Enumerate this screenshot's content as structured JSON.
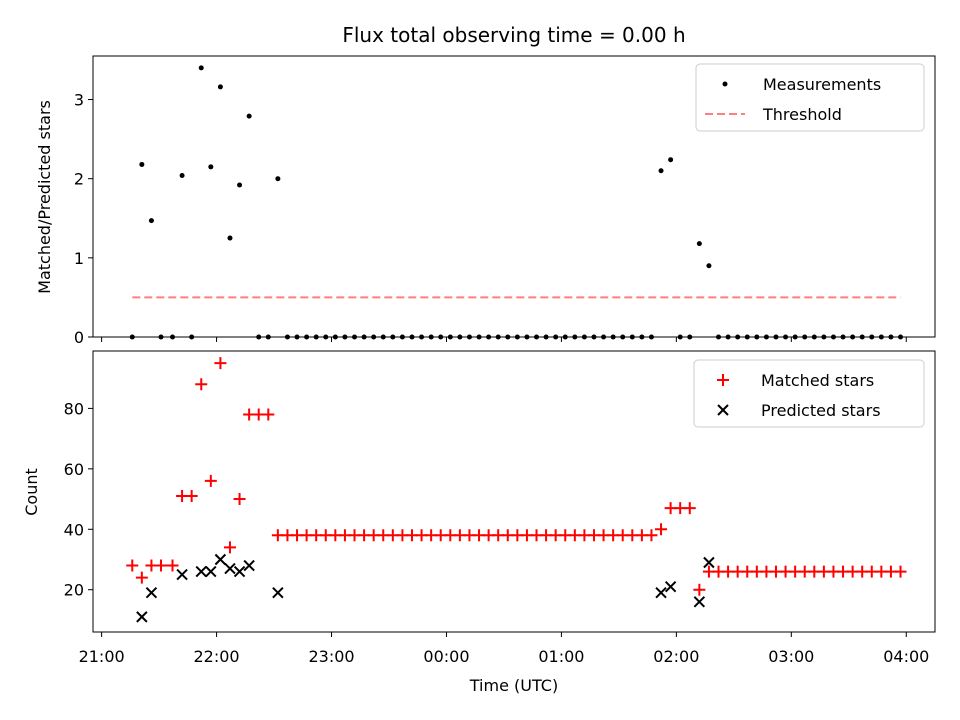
{
  "figure": {
    "title": "Flux total observing time = 0.00 h",
    "xlabel": "Time (UTC)"
  },
  "chart_data": [
    {
      "type": "scatter",
      "panel": "top",
      "ylabel": "Matched/Predicted stars",
      "xlim_hours": [
        -0.075,
        7.25
      ],
      "ylim": [
        0,
        3.55
      ],
      "yticks": [
        0,
        1,
        2,
        3
      ],
      "legend": "top-right",
      "legend_entries": [
        "Measurements",
        "Threshold"
      ],
      "threshold": 0.5,
      "threshold_color": "#ff7f7f",
      "series": [
        {
          "name": "Measurements",
          "color": "#000000",
          "x": [
            "21:16",
            "21:21",
            "21:26",
            "21:31",
            "21:37",
            "21:42",
            "21:47",
            "21:52",
            "21:57",
            "22:02",
            "22:07",
            "22:12",
            "22:17",
            "22:22",
            "22:27",
            "22:32",
            "22:37",
            "22:42",
            "22:47",
            "22:52",
            "22:57",
            "23:02",
            "23:07",
            "23:12",
            "23:17",
            "23:22",
            "23:27",
            "23:32",
            "23:37",
            "23:42",
            "23:47",
            "23:52",
            "23:57",
            "00:02",
            "00:07",
            "00:12",
            "00:17",
            "00:22",
            "00:27",
            "00:32",
            "00:37",
            "00:42",
            "00:47",
            "00:52",
            "00:57",
            "01:02",
            "01:07",
            "01:12",
            "01:17",
            "01:22",
            "01:27",
            "01:32",
            "01:37",
            "01:42",
            "01:47",
            "01:52",
            "01:57",
            "02:02",
            "02:07",
            "02:12",
            "02:17",
            "02:22",
            "02:27",
            "02:32",
            "02:37",
            "02:42",
            "02:47",
            "02:52",
            "02:57",
            "03:02",
            "03:07",
            "03:12",
            "03:17",
            "03:22",
            "03:27",
            "03:32",
            "03:37",
            "03:42",
            "03:47",
            "03:52",
            "03:57"
          ],
          "y": [
            0,
            2.18,
            1.47,
            0,
            0,
            2.04,
            0,
            3.4,
            2.15,
            3.16,
            1.25,
            1.92,
            2.79,
            0,
            0,
            2,
            0,
            0,
            0,
            0,
            0,
            0,
            0,
            0,
            0,
            0,
            0,
            0,
            0,
            0,
            0,
            0,
            0,
            0,
            0,
            0,
            0,
            0,
            0,
            0,
            0,
            0,
            0,
            0,
            0,
            0,
            0,
            0,
            0,
            0,
            0,
            0,
            0,
            0,
            0,
            2.1,
            2.24,
            0,
            0,
            1.18,
            0.9,
            0,
            0,
            0,
            0,
            0,
            0,
            0,
            0,
            0,
            0,
            0,
            0,
            0,
            0,
            0,
            0,
            0,
            0,
            0,
            0
          ]
        }
      ]
    },
    {
      "type": "scatter",
      "panel": "bottom",
      "ylabel": "Count",
      "xlim_hours": [
        -0.075,
        7.25
      ],
      "ylim": [
        6,
        99
      ],
      "yticks": [
        20,
        40,
        60,
        80
      ],
      "legend": "top-right",
      "legend_entries": [
        "Matched stars",
        "Predicted stars"
      ],
      "xticks": [
        "21:00",
        "22:00",
        "23:00",
        "00:00",
        "01:00",
        "02:00",
        "03:00",
        "04:00"
      ],
      "series": [
        {
          "name": "Matched stars",
          "color": "#ff0000",
          "x": [
            "21:16",
            "21:21",
            "21:26",
            "21:31",
            "21:37",
            "21:42",
            "21:47",
            "21:52",
            "21:57",
            "22:02",
            "22:07",
            "22:12",
            "22:17",
            "22:22",
            "22:27",
            "22:32",
            "22:37",
            "22:42",
            "22:47",
            "22:52",
            "22:57",
            "23:02",
            "23:07",
            "23:12",
            "23:17",
            "23:22",
            "23:27",
            "23:32",
            "23:37",
            "23:42",
            "23:47",
            "23:52",
            "23:57",
            "00:02",
            "00:07",
            "00:12",
            "00:17",
            "00:22",
            "00:27",
            "00:32",
            "00:37",
            "00:42",
            "00:47",
            "00:52",
            "00:57",
            "01:02",
            "01:07",
            "01:12",
            "01:17",
            "01:22",
            "01:27",
            "01:32",
            "01:37",
            "01:42",
            "01:47",
            "01:52",
            "01:57",
            "02:02",
            "02:07",
            "02:12",
            "02:17",
            "02:22",
            "02:27",
            "02:32",
            "02:37",
            "02:42",
            "02:47",
            "02:52",
            "02:57",
            "03:02",
            "03:07",
            "03:12",
            "03:17",
            "03:22",
            "03:27",
            "03:32",
            "03:37",
            "03:42",
            "03:47",
            "03:52",
            "03:57"
          ],
          "y": [
            28,
            24,
            28,
            28,
            28,
            51,
            51,
            88,
            56,
            95,
            34,
            50,
            78,
            78,
            78,
            38,
            38,
            38,
            38,
            38,
            38,
            38,
            38,
            38,
            38,
            38,
            38,
            38,
            38,
            38,
            38,
            38,
            38,
            38,
            38,
            38,
            38,
            38,
            38,
            38,
            38,
            38,
            38,
            38,
            38,
            38,
            38,
            38,
            38,
            38,
            38,
            38,
            38,
            38,
            38,
            40,
            47,
            47,
            47,
            20,
            26,
            26,
            26,
            26,
            26,
            26,
            26,
            26,
            26,
            26,
            26,
            26,
            26,
            26,
            26,
            26,
            26,
            26,
            26,
            26,
            26
          ]
        },
        {
          "name": "Predicted stars",
          "color": "#000000",
          "x": [
            "21:21",
            "21:26",
            "21:42",
            "21:52",
            "21:57",
            "22:02",
            "22:07",
            "22:12",
            "22:17",
            "22:32",
            "01:52",
            "01:57",
            "02:12",
            "02:17"
          ],
          "y": [
            11,
            19,
            25,
            26,
            26,
            30,
            27,
            26,
            28,
            19,
            19,
            21,
            16,
            29
          ]
        }
      ]
    }
  ]
}
